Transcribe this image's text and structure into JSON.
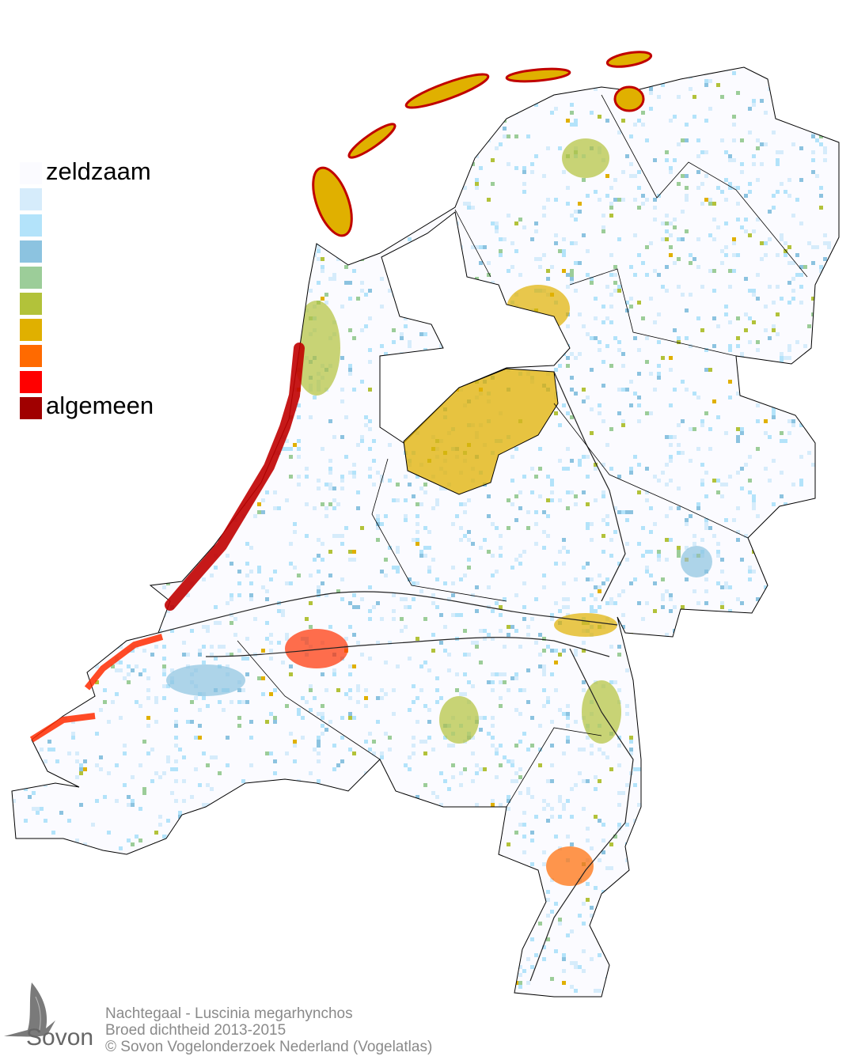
{
  "legend": {
    "top_label": "zeldzaam",
    "bottom_label": "algemeen",
    "colors": [
      "#fbfbff",
      "#d6ecfb",
      "#b3e3fa",
      "#8cc3e0",
      "#9ccd99",
      "#b2c23a",
      "#e0b000",
      "#ff6a00",
      "#ff0000",
      "#a00000"
    ]
  },
  "footer": {
    "line1": "Nachtegaal - Luscinia megarhynchos",
    "line2": "Broed dichtheid 2013-2015",
    "line3": "© Sovon Vogelonderzoek Nederland (Vogelatlas)"
  },
  "logo": {
    "text": "Sovon"
  }
}
